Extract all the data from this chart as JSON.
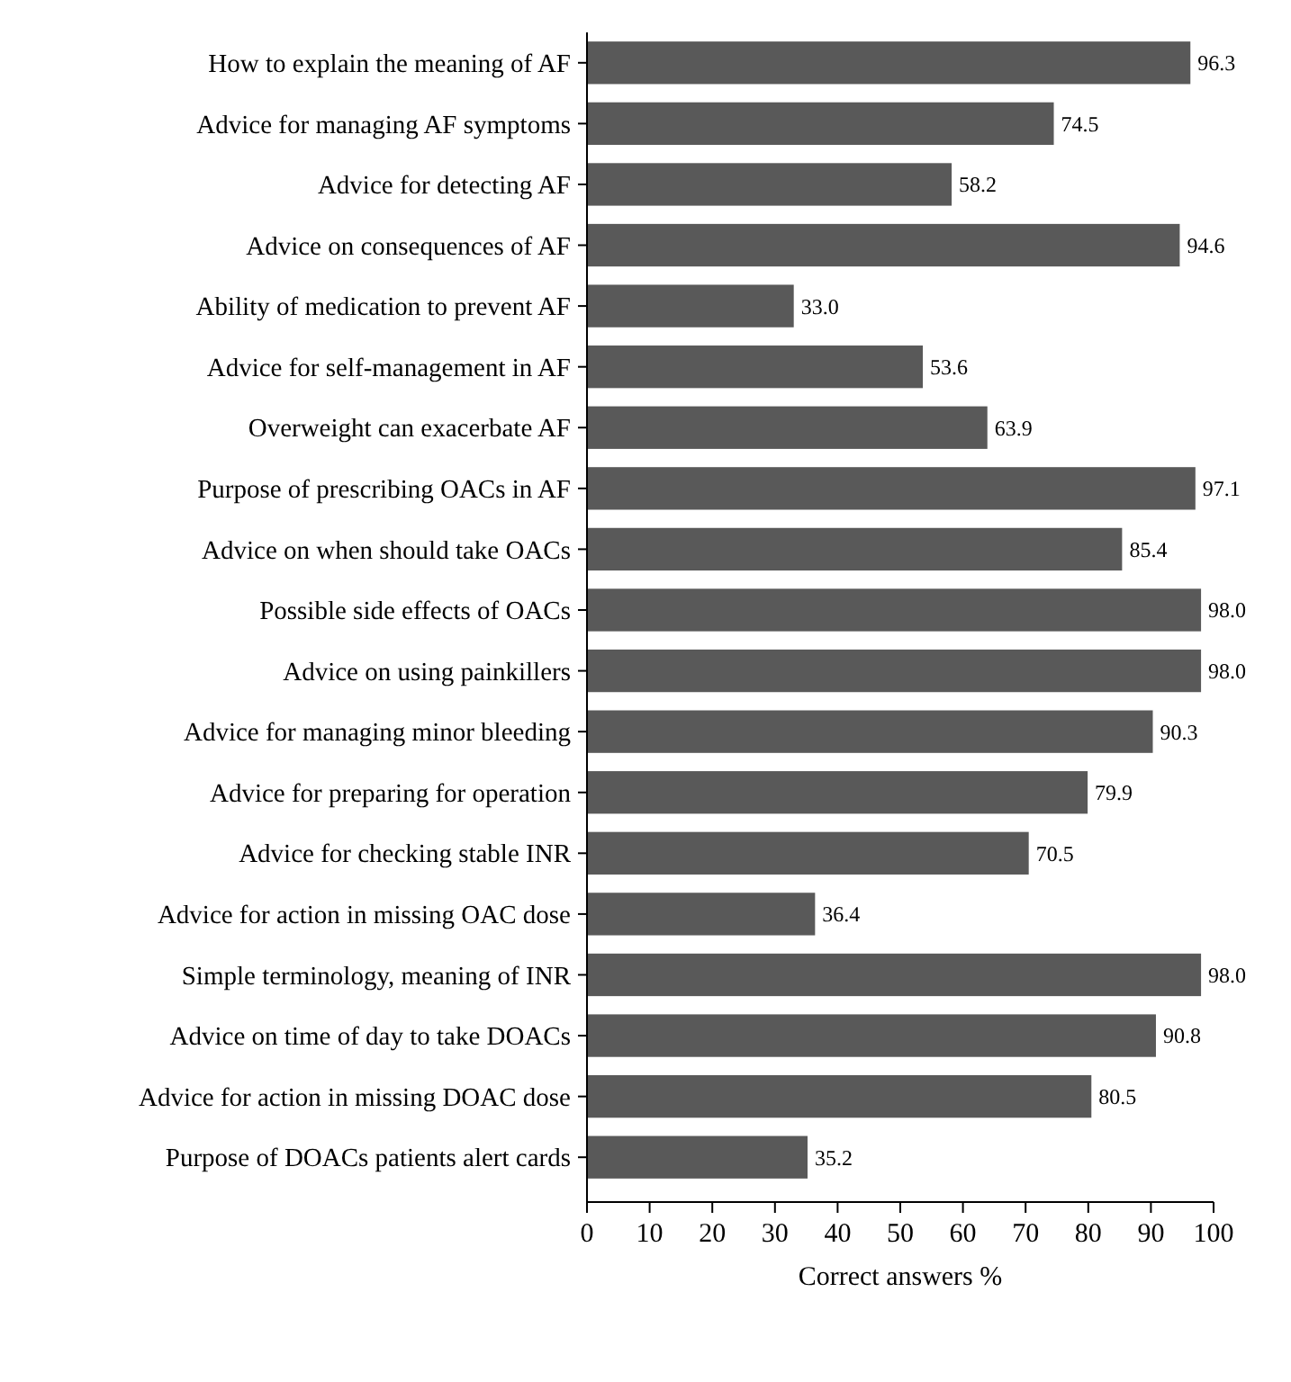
{
  "chart_data": {
    "type": "bar",
    "orientation": "horizontal",
    "xlabel": "Correct answers %",
    "categories": [
      "How to explain the meaning of AF",
      "Advice for managing AF symptoms",
      "Advice for detecting AF",
      "Advice on consequences of AF",
      "Ability of medication to prevent AF",
      "Advice for self-management in AF",
      "Overweight can exacerbate AF",
      "Purpose of prescribing OACs in AF",
      "Advice on when should take OACs",
      "Possible side effects of OACs",
      "Advice on using painkillers",
      "Advice for managing minor bleeding",
      "Advice for preparing for operation",
      "Advice for checking stable INR",
      "Advice for action in missing OAC dose",
      "Simple terminology, meaning of INR",
      "Advice on time of day to take DOACs",
      "Advice for action in missing DOAC dose",
      "Purpose of DOACs patients alert cards"
    ],
    "values": [
      96.3,
      74.5,
      58.2,
      94.6,
      33.0,
      53.6,
      63.9,
      97.1,
      85.4,
      98.0,
      98.0,
      90.3,
      79.9,
      70.5,
      36.4,
      98.0,
      90.8,
      80.5,
      35.2
    ],
    "value_labels": [
      "96.3",
      "74.5",
      "58.2",
      "94.6",
      "33.0",
      "53.6",
      "63.9",
      "97.1",
      "85.4",
      "98.0",
      "98.0",
      "90.3",
      "79.9",
      "70.5",
      "36.4",
      "98.0",
      "90.8",
      "80.5",
      "35.2"
    ],
    "color": "#595959",
    "xlim": [
      0,
      100
    ],
    "xticks": [
      0,
      10,
      20,
      30,
      40,
      50,
      60,
      70,
      80,
      90,
      100
    ],
    "grid": false
  }
}
